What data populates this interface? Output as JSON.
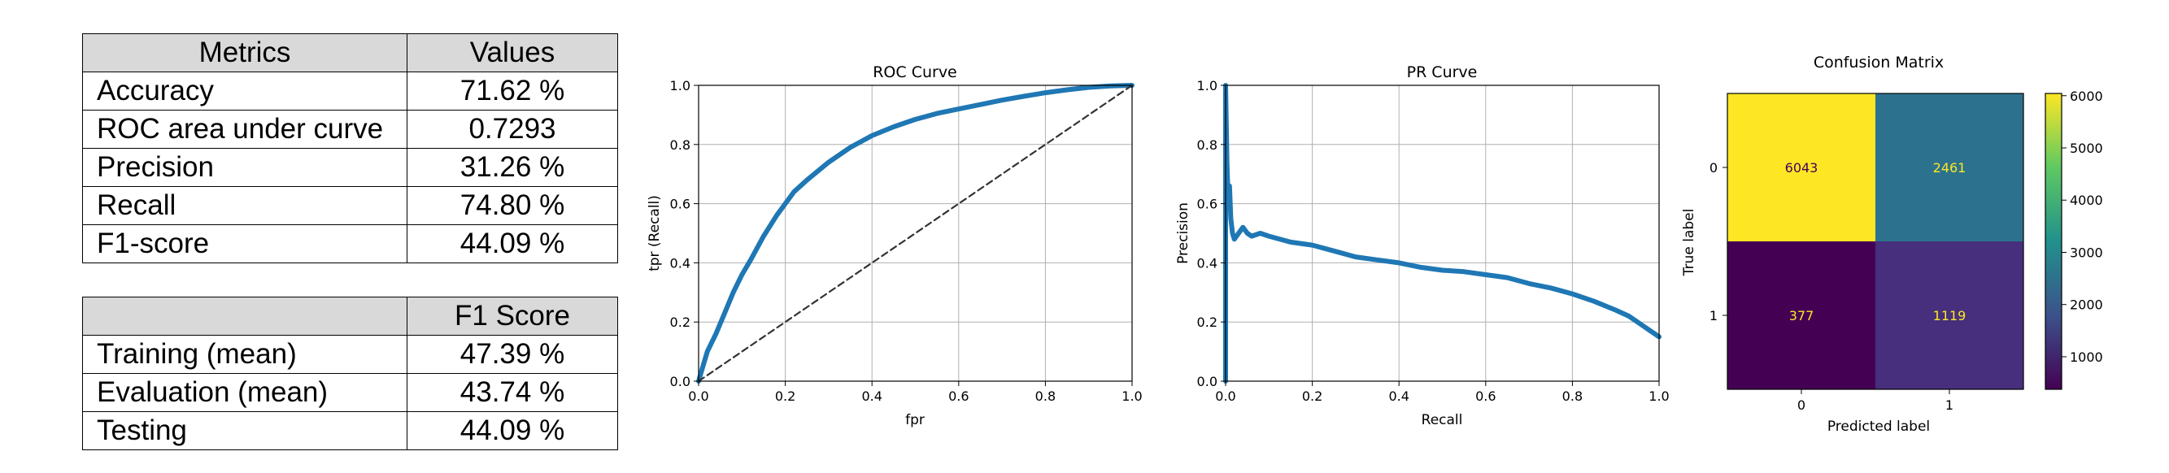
{
  "metrics_table": {
    "headers": [
      "Metrics",
      "Values"
    ],
    "rows": [
      {
        "name": "Accuracy",
        "value": "71.62 %"
      },
      {
        "name": "ROC area under curve",
        "value": "0.7293"
      },
      {
        "name": "Precision",
        "value": "31.26 %"
      },
      {
        "name": "Recall",
        "value": "74.80 %"
      },
      {
        "name": "F1-score",
        "value": "44.09 %"
      }
    ]
  },
  "f1_table": {
    "headers": [
      "",
      "F1 Score"
    ],
    "rows": [
      {
        "name": "Training (mean)",
        "value": "47.39 %"
      },
      {
        "name": "Evaluation (mean)",
        "value": "43.74 %"
      },
      {
        "name": "Testing",
        "value": "44.09 %"
      }
    ]
  },
  "chart_data": [
    {
      "type": "line",
      "title": "ROC Curve",
      "xlabel": "fpr",
      "ylabel": "tpr (Recall)",
      "xlim": [
        0,
        1
      ],
      "ylim": [
        0,
        1
      ],
      "xticks": [
        "0.0",
        "0.2",
        "0.4",
        "0.6",
        "0.8",
        "1.0"
      ],
      "yticks": [
        "0.0",
        "0.2",
        "0.4",
        "0.6",
        "0.8",
        "1.0"
      ],
      "grid": true,
      "series": [
        {
          "color": "#1f77b4",
          "x": [
            0,
            0.01,
            0.02,
            0.04,
            0.06,
            0.08,
            0.1,
            0.12,
            0.15,
            0.18,
            0.2,
            0.22,
            0.25,
            0.3,
            0.35,
            0.4,
            0.45,
            0.5,
            0.55,
            0.6,
            0.65,
            0.7,
            0.75,
            0.8,
            0.85,
            0.9,
            0.95,
            1.0
          ],
          "y": [
            0,
            0.05,
            0.1,
            0.16,
            0.23,
            0.3,
            0.36,
            0.41,
            0.49,
            0.56,
            0.6,
            0.64,
            0.68,
            0.74,
            0.79,
            0.83,
            0.86,
            0.885,
            0.905,
            0.92,
            0.935,
            0.95,
            0.963,
            0.975,
            0.985,
            0.993,
            0.998,
            1.0
          ]
        },
        {
          "color": "#333333",
          "style": "dashed",
          "x": [
            0,
            1
          ],
          "y": [
            0,
            1
          ]
        }
      ]
    },
    {
      "type": "line",
      "title": "PR Curve",
      "xlabel": "Recall",
      "ylabel": "Precision",
      "xlim": [
        0,
        1
      ],
      "ylim": [
        0,
        1
      ],
      "xticks": [
        "0.0",
        "0.2",
        "0.4",
        "0.6",
        "0.8",
        "1.0"
      ],
      "yticks": [
        "0.0",
        "0.2",
        "0.4",
        "0.6",
        "0.8",
        "1.0"
      ],
      "grid": true,
      "series": [
        {
          "color": "#1f77b4",
          "x": [
            0,
            0.0,
            0.003,
            0.006,
            0.009,
            0.012,
            0.016,
            0.02,
            0.03,
            0.04,
            0.05,
            0.06,
            0.08,
            0.1,
            0.15,
            0.2,
            0.25,
            0.3,
            0.35,
            0.4,
            0.45,
            0.5,
            0.55,
            0.6,
            0.65,
            0.7,
            0.75,
            0.8,
            0.85,
            0.9,
            0.93,
            0.96,
            0.98,
            1.0
          ],
          "y": [
            0,
            1.0,
            0.75,
            0.6,
            0.66,
            0.55,
            0.5,
            0.48,
            0.5,
            0.52,
            0.5,
            0.49,
            0.5,
            0.49,
            0.47,
            0.46,
            0.44,
            0.42,
            0.41,
            0.4,
            0.385,
            0.375,
            0.37,
            0.36,
            0.35,
            0.33,
            0.315,
            0.295,
            0.27,
            0.24,
            0.22,
            0.19,
            0.17,
            0.15
          ]
        }
      ]
    },
    {
      "type": "heatmap",
      "title": "Confusion Matrix",
      "xlabel": "Predicted label",
      "ylabel": "True label",
      "x_categories": [
        "0",
        "1"
      ],
      "y_categories": [
        "0",
        "1"
      ],
      "values": [
        [
          6043,
          2461
        ],
        [
          377,
          1119
        ]
      ],
      "colors": [
        [
          "#fde725",
          "#2c728e"
        ],
        [
          "#440154",
          "#472f7d"
        ]
      ],
      "text_colors": [
        [
          "#440154",
          "#fde725"
        ],
        [
          "#fde725",
          "#fde725"
        ]
      ],
      "colorbar": {
        "ticks": [
          1000,
          2000,
          3000,
          4000,
          5000,
          6000
        ],
        "range": [
          377,
          6043
        ],
        "colors": [
          "#440154",
          "#3b528b",
          "#21918c",
          "#5ec962",
          "#fde725"
        ]
      }
    }
  ]
}
